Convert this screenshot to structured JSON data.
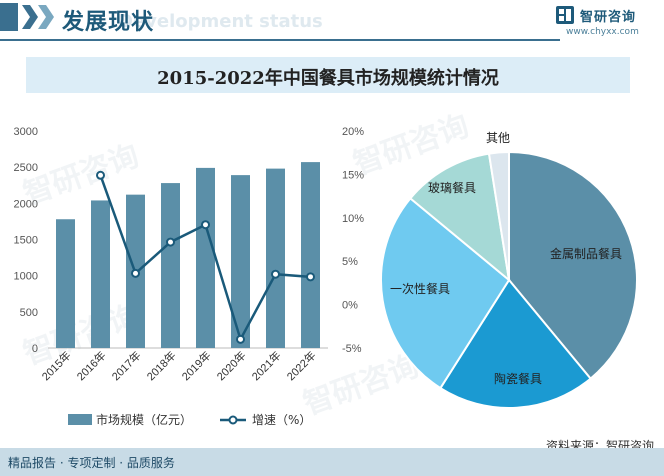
{
  "header": {
    "title": "发展现状",
    "watermark": "Development status"
  },
  "brand": {
    "name": "智研咨询",
    "url": "www.chyxx.com"
  },
  "chart_title": "2015-2022年中国餐具市场规模统计情况",
  "colors": {
    "bar": "#5b8fa8",
    "line": "#1a5a7a",
    "accent": "#3a6f8f"
  },
  "chart_data": [
    {
      "type": "bar",
      "categories": [
        "2015年",
        "2016年",
        "2017年",
        "2018年",
        "2019年",
        "2020年",
        "2021年",
        "2022年"
      ],
      "series": [
        {
          "name": "市场规模（亿元）",
          "type": "bar",
          "axis": "left",
          "values": [
            1780,
            2040,
            2120,
            2280,
            2490,
            2390,
            2480,
            2570
          ]
        },
        {
          "name": "增速（%）",
          "type": "line",
          "axis": "right",
          "values": [
            null,
            14.9,
            3.6,
            7.2,
            9.2,
            -4.0,
            3.5,
            3.2
          ]
        }
      ],
      "y_left": {
        "ticks": [
          "3000",
          "2500",
          "2000",
          "1500",
          "1000",
          "500",
          "0"
        ],
        "range": [
          0,
          3000
        ]
      },
      "y_right": {
        "ticks": [
          "20%",
          "15%",
          "10%",
          "5%",
          "0%",
          "-5%"
        ],
        "range": [
          -5,
          20
        ]
      },
      "legend": [
        "市场规模（亿元）",
        "增速（%）"
      ],
      "legend_position": "bottom"
    },
    {
      "type": "pie",
      "labels": [
        "金属制品餐具",
        "陶瓷餐具",
        "一次性餐具",
        "玻璃餐具",
        "其他"
      ],
      "values": [
        39,
        20,
        27,
        11.5,
        2.5
      ],
      "colors": [
        "#5b8fa8",
        "#1b9ad2",
        "#6fcaf0",
        "#a5d9d6",
        "#dce6ee"
      ]
    }
  ],
  "footer": {
    "text": "精品报告 · 专项定制 · 品质服务"
  },
  "source": "资料来源：智研咨询",
  "watermark": "智研咨询"
}
